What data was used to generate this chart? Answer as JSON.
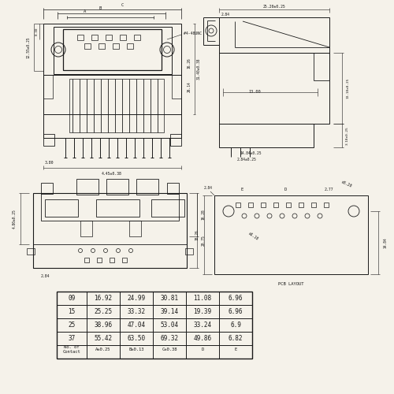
{
  "table": {
    "headers": [
      "No. of\nContact",
      "A±0.25",
      "B±0.13",
      "C±0.38",
      "D",
      "E"
    ],
    "rows": [
      [
        "09",
        "16.92",
        "24.99",
        "30.81",
        "11.08",
        "6.96"
      ],
      [
        "15",
        "25.25",
        "33.32",
        "39.14",
        "19.39",
        "6.96"
      ],
      [
        "25",
        "38.96",
        "47.04",
        "53.04",
        "33.24",
        "6.9"
      ],
      [
        "37",
        "55.42",
        "63.50",
        "69.32",
        "49.86",
        "6.82"
      ]
    ]
  },
  "bg_color": "#f5f2ea",
  "line_color": "#1a1a1a"
}
